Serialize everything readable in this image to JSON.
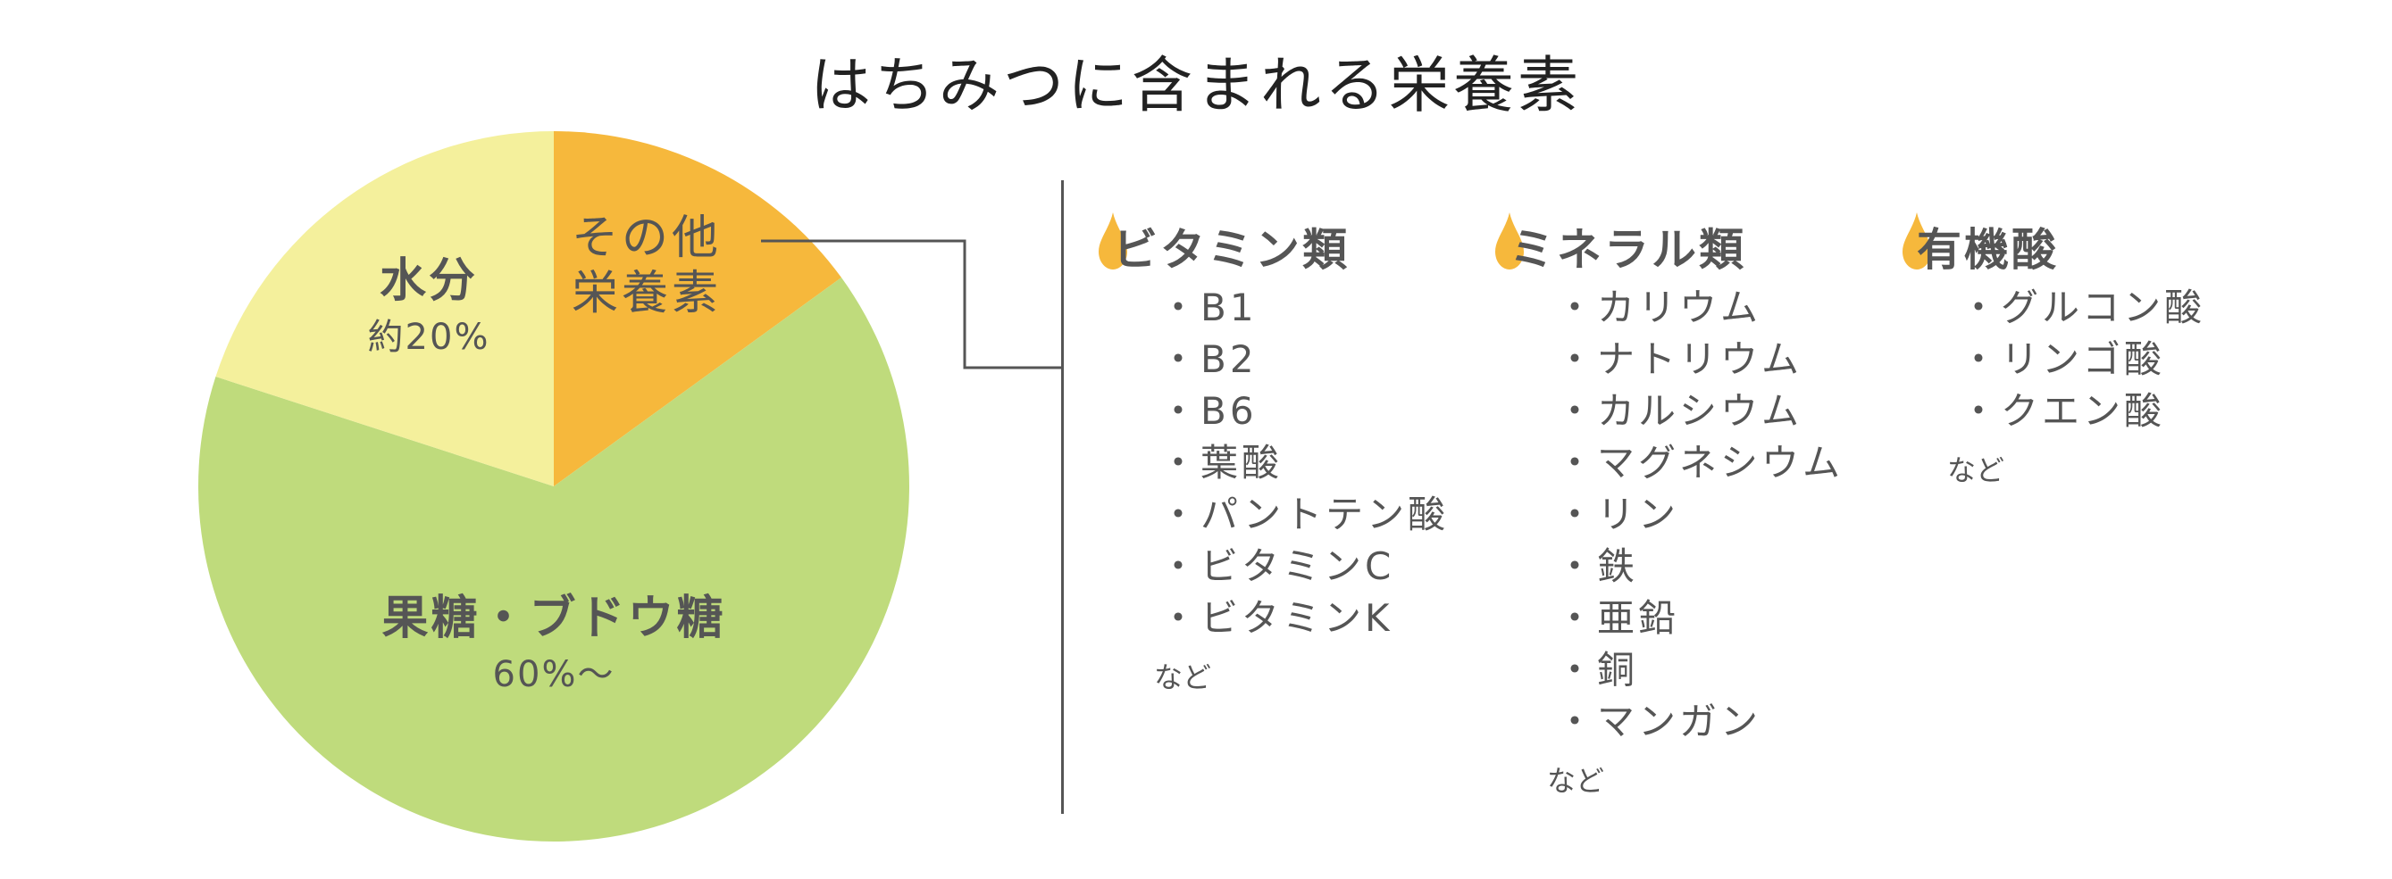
{
  "title": "はちみつに含まれる栄養素",
  "chart_data": {
    "type": "pie",
    "title": "はちみつに含まれる栄養素",
    "slices": [
      {
        "name": "その他栄養素",
        "value": 15,
        "color": "#F6B83C"
      },
      {
        "name": "果糖・ブドウ糖",
        "value": 65,
        "color": "#BFDB7C"
      },
      {
        "name": "水分",
        "value": 20,
        "color": "#F4F09C"
      }
    ],
    "start_angle": "12 o'clock, clockwise"
  },
  "labels": {
    "water_name": "水分",
    "water_value": "約20%",
    "sugar_name": "果糖・ブドウ糖",
    "sugar_value": "60%～",
    "other_line1": "その他",
    "other_line2": "栄養素"
  },
  "drop_color": "#F6B83C",
  "categories": [
    {
      "title": "ビタミン類",
      "items": [
        "・B1",
        "・B2",
        "・B6",
        "・葉酸",
        "・パントテン酸",
        "・ビタミンC",
        "・ビタミンK"
      ],
      "note": "など"
    },
    {
      "title": "ミネラル類",
      "items": [
        "・カリウム",
        "・ナトリウム",
        "・カルシウム",
        "・マグネシウム",
        "・リン",
        "・鉄",
        "・亜鉛",
        "・銅",
        "・マンガン"
      ],
      "note": "など"
    },
    {
      "title": "有機酸",
      "items": [
        "・グルコン酸",
        "・リンゴ酸",
        "・クエン酸"
      ],
      "note": "など"
    }
  ]
}
